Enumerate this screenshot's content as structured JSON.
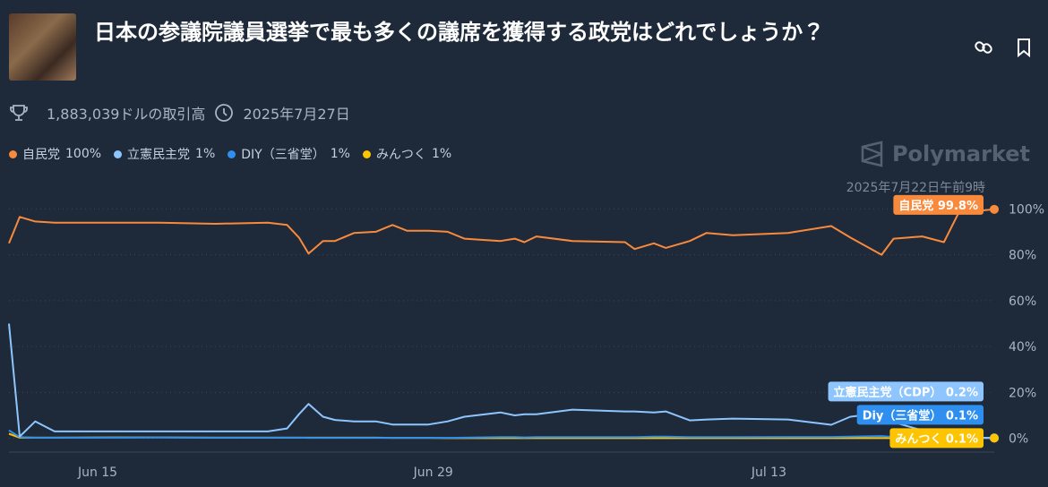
{
  "header": {
    "title": "日本の参議院議員選挙で最も多くの議席を獲得する政党はどれでしょうか？",
    "volume": "1,883,039ドルの取引高",
    "end_date": "2025年7月27日",
    "brand": "Polymarket"
  },
  "chart_data": {
    "type": "line",
    "hover_time": "2025年7月22日午前9時",
    "x": [
      11.3,
      11.75,
      12.4,
      13.2,
      15.4,
      17.6,
      19.9,
      22.1,
      22.9,
      23.4,
      23.8,
      24.4,
      24.9,
      25.7,
      26.6,
      27.3,
      27.9,
      28.8,
      29.6,
      30.3,
      31.8,
      32.4,
      32.8,
      33.3,
      34.8,
      37.0,
      37.4,
      38.2,
      38.7,
      39.7,
      40.4,
      41.5,
      43.8,
      45.6,
      46.4,
      47.7,
      48.2,
      49.4,
      50.3,
      50.9,
      51.6,
      52.4
    ],
    "xlim": [
      11.3,
      52.4
    ],
    "xticks": [
      {
        "value": 15,
        "label": "Jun 15"
      },
      {
        "value": 29,
        "label": "Jun 29"
      },
      {
        "value": 43,
        "label": "Jul 13"
      }
    ],
    "ylim": [
      -6,
      113
    ],
    "yticks": [
      {
        "value": 0,
        "label": "0%"
      },
      {
        "value": 20,
        "label": "20%"
      },
      {
        "value": 40,
        "label": "40%"
      },
      {
        "value": 60,
        "label": "60%"
      },
      {
        "value": 80,
        "label": "80%"
      },
      {
        "value": 100,
        "label": "100%"
      }
    ],
    "grid": true,
    "series": [
      {
        "name": "自民党",
        "legend_label": "100%",
        "end_label": "自民党 99.8%",
        "color": "#f98a3c",
        "values": [
          85,
          96.5,
          94.5,
          94,
          94,
          94,
          93.5,
          94,
          93,
          87.5,
          80.5,
          86,
          86,
          89.5,
          90,
          93,
          90.5,
          90.5,
          90,
          87,
          86,
          87,
          85.5,
          88,
          86,
          85.5,
          82.5,
          85,
          83,
          86,
          89.5,
          88.5,
          89.5,
          92.5,
          87.5,
          80,
          87,
          88,
          85.5,
          98,
          99,
          99.8
        ]
      },
      {
        "name": "立憲民主党",
        "legend_label": "1%",
        "end_label": "立憲民主党（CDP） 0.2%",
        "color": "#8ec5ff",
        "values": [
          50,
          0.8,
          7.4,
          3,
          3,
          3,
          3,
          3,
          4.3,
          10.5,
          15,
          9.4,
          8,
          7.4,
          7.4,
          6,
          6,
          6,
          7.4,
          9.4,
          11.3,
          10,
          10.5,
          10.5,
          12.5,
          11.7,
          11.7,
          11.3,
          11.7,
          7.8,
          8.2,
          8.6,
          8.2,
          5.9,
          9.4,
          11,
          7,
          3.5,
          1.5,
          0.4,
          0.3,
          0.2
        ]
      },
      {
        "name": "DIY（三省堂）",
        "legend_label": "1%",
        "end_label": "Diy（三省堂） 0.1%",
        "color": "#2e8fef",
        "values": [
          3.5,
          0.5,
          0.3,
          0.3,
          0.3,
          0.4,
          0.3,
          0.3,
          0.3,
          0.3,
          0.2,
          0.2,
          0.2,
          0.2,
          0.2,
          0.2,
          0.2,
          0.2,
          0.2,
          0.3,
          0.5,
          0.5,
          0.4,
          0.5,
          0.5,
          0.5,
          0.5,
          0.7,
          0.7,
          0.5,
          0.5,
          0.5,
          0.6,
          0.6,
          0.7,
          1,
          0.6,
          0.4,
          0.2,
          0.1,
          0.1,
          0.1
        ]
      },
      {
        "name": "みんつく",
        "legend_label": "1%",
        "end_label": "みんつく 0.1%",
        "color": "#ffc400",
        "values": [
          2,
          0.3,
          0.3,
          0.3,
          0.4,
          0.4,
          0.3,
          0.3,
          0.3,
          0.3,
          0.3,
          0.3,
          0.3,
          0.3,
          0.3,
          0.2,
          0.2,
          0.2,
          0.1,
          0.1,
          0.1,
          0.1,
          0.1,
          0.1,
          0.1,
          0.1,
          0.1,
          0.1,
          0.1,
          0.1,
          0.1,
          0.1,
          0.1,
          0.1,
          0.1,
          0.1,
          0.1,
          0.1,
          0.1,
          0.1,
          0.1,
          0.1
        ]
      }
    ]
  }
}
